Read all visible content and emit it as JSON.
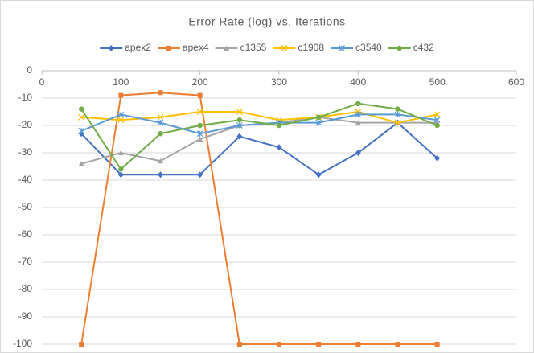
{
  "chart_data": {
    "type": "line",
    "title": "Error Rate (log) vs. Iterations",
    "x": [
      50,
      100,
      150,
      200,
      250,
      300,
      350,
      400,
      450,
      500
    ],
    "series": [
      {
        "name": "apex2",
        "color": "#4472c4",
        "marker": "diamond",
        "values": [
          -23,
          -38,
          -38,
          -38,
          -24,
          -28,
          -38,
          -30,
          -19,
          -32
        ]
      },
      {
        "name": "apex4",
        "color": "#ed7d31",
        "marker": "square",
        "values": [
          -100,
          -9,
          -8,
          -9,
          -100,
          -100,
          -100,
          -100,
          -100,
          -100
        ]
      },
      {
        "name": "c1355",
        "color": "#a5a5a5",
        "marker": "triangle",
        "values": [
          -34,
          -30,
          -33,
          -25,
          -20,
          -19,
          -17,
          -19,
          -19,
          -19
        ]
      },
      {
        "name": "c1908",
        "color": "#ffc000",
        "marker": "x",
        "values": [
          -17,
          -18,
          -17,
          -15,
          -15,
          -18,
          -17,
          -15,
          -19,
          -16
        ]
      },
      {
        "name": "c3540",
        "color": "#5b9bd5",
        "marker": "star",
        "values": [
          -22,
          -16,
          -19,
          -23,
          -20,
          -19,
          -19,
          -16,
          -16,
          -18
        ]
      },
      {
        "name": "c432",
        "color": "#70ad47",
        "marker": "circle",
        "values": [
          -14,
          -36,
          -23,
          -20,
          -18,
          -20,
          -17,
          -12,
          -14,
          -20
        ]
      }
    ],
    "xlim": [
      0,
      600
    ],
    "xticks": [
      0,
      100,
      200,
      300,
      400,
      500,
      600
    ],
    "ylim": [
      -100,
      0
    ],
    "yticks": [
      0,
      -10,
      -20,
      -30,
      -40,
      -50,
      -60,
      -70,
      -80,
      -90,
      -100
    ],
    "grid": true,
    "legend": "top"
  }
}
